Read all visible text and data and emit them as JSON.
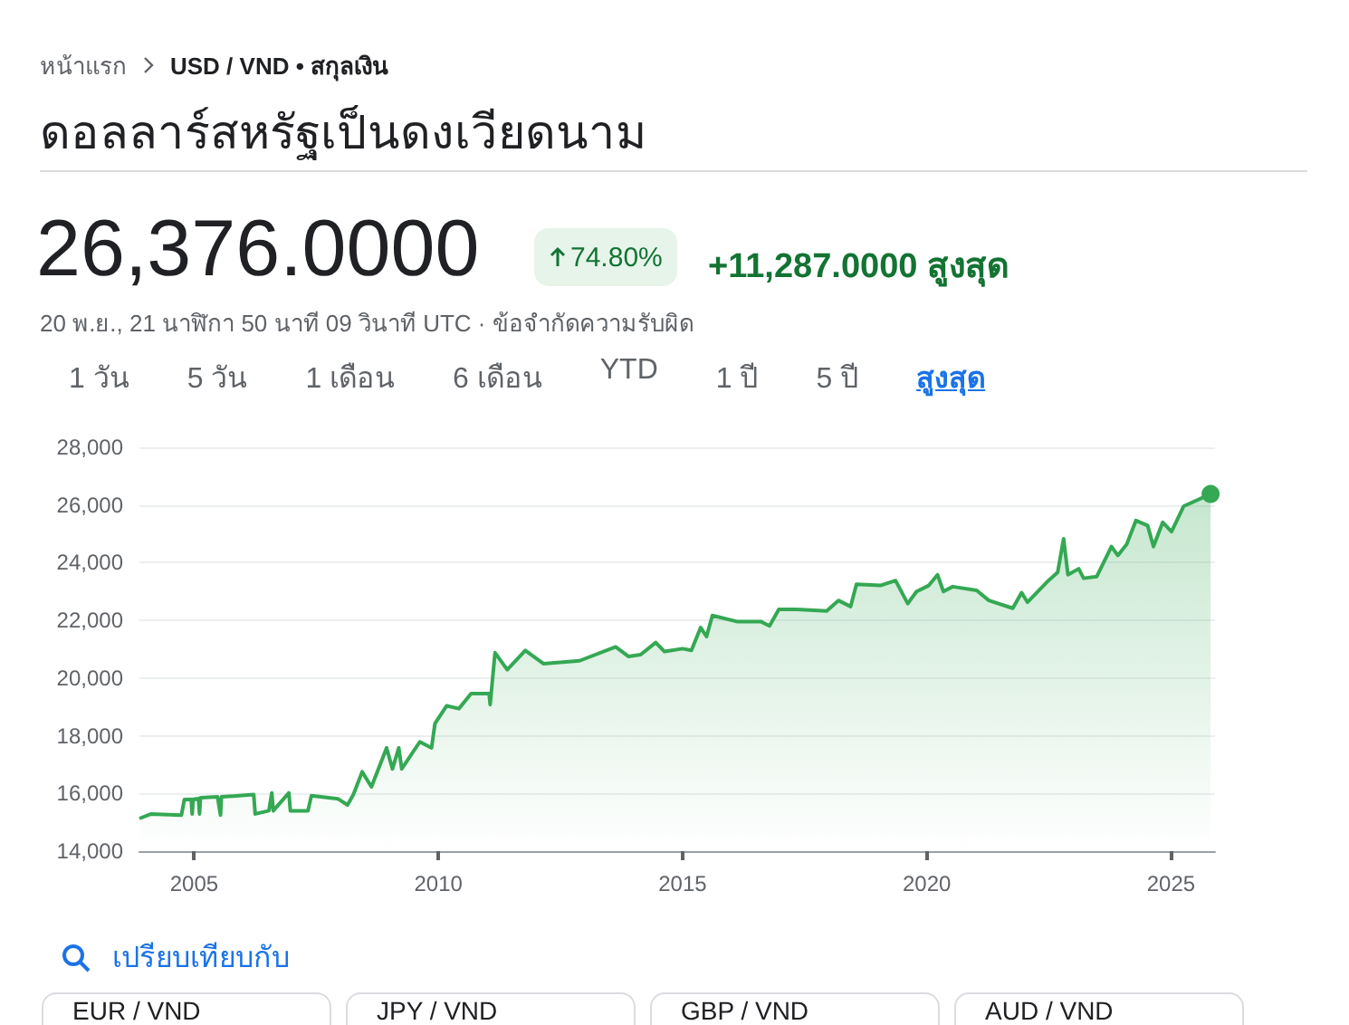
{
  "chart_data": {
    "type": "area",
    "title": "ดอลลาร์สหรัฐเป็นดงเวียดนาม",
    "subtitle": "USD / VND • สกุลเงิน",
    "annotations": [
      "หน้าแรก",
      "26,376.0000",
      "74.80%",
      "+11,287.0000 สูงสุด",
      "20 พ.ย., 21 นาฬิกา 50 นาที 09 วินาที UTC · ข้อจำกัดความรับผิด",
      "1 วัน",
      "5 วัน",
      "1 เดือน",
      "6 เดือน",
      "YTD",
      "1 ปี",
      "5 ปี",
      "สูงสุด",
      "เปรียบเทียบกับ",
      "EUR / VND",
      "JPY / VND",
      "GBP / VND",
      "AUD / VND"
    ],
    "x": [
      2003.88,
      2004.12,
      2004.74,
      2004.8,
      2004.94,
      2004.96,
      2004.98,
      2005.09,
      2005.11,
      2005.13,
      2005.48,
      2005.54,
      2005.56,
      2006.22,
      2006.25,
      2006.53,
      2006.59,
      2006.62,
      2006.94,
      2006.97,
      2007.33,
      2007.4,
      2007.95,
      2008.14,
      2008.26,
      2008.44,
      2008.63,
      2008.94,
      2009.06,
      2009.19,
      2009.25,
      2009.62,
      2009.86,
      2009.93,
      2010.17,
      2010.42,
      2010.67,
      2011.04,
      2011.06,
      2011.16,
      2011.41,
      2011.78,
      2012.15,
      2012.89,
      2013.63,
      2013.89,
      2014.14,
      2014.45,
      2014.63,
      2015.0,
      2015.18,
      2015.37,
      2015.49,
      2015.61,
      2016.11,
      2016.6,
      2016.78,
      2016.97,
      2017.33,
      2017.95,
      2018.19,
      2018.44,
      2018.56,
      2019.05,
      2019.36,
      2019.61,
      2019.79,
      2020.04,
      2020.22,
      2020.34,
      2020.53,
      2021.02,
      2021.27,
      2021.76,
      2021.94,
      2022.06,
      2022.49,
      2022.68,
      2022.8,
      2022.89,
      2023.11,
      2023.21,
      2023.48,
      2023.78,
      2023.91,
      2024.09,
      2024.28,
      2024.52,
      2024.64,
      2024.83,
      2025.01,
      2025.26,
      2025.81
    ],
    "series": [
      {
        "color": "#34a853",
        "values": [
          15130,
          15290,
          15250,
          15790,
          15800,
          15290,
          15800,
          15820,
          15290,
          15850,
          15880,
          15250,
          15880,
          15960,
          15290,
          15400,
          16020,
          15400,
          16020,
          15400,
          15400,
          15920,
          15810,
          15600,
          15960,
          16750,
          16230,
          17580,
          16850,
          17580,
          16850,
          17790,
          17580,
          18420,
          19040,
          18940,
          19460,
          19460,
          19080,
          20880,
          20290,
          20960,
          20500,
          20600,
          21080,
          20750,
          20810,
          21230,
          20920,
          21020,
          20960,
          21750,
          21440,
          22170,
          21960,
          21960,
          21810,
          22380,
          22380,
          22330,
          22690,
          22480,
          23250,
          23210,
          23380,
          22580,
          23000,
          23210,
          23580,
          23000,
          23170,
          23040,
          22690,
          22420,
          22960,
          22630,
          23380,
          23670,
          24830,
          23580,
          23790,
          23460,
          23520,
          24560,
          24250,
          24630,
          25460,
          25290,
          24560,
          25400,
          25080,
          25960,
          26380
        ]
      }
    ],
    "xlim": [
      2003.88,
      2025.9
    ],
    "xticks": [
      2005,
      2010,
      2015,
      2020,
      2025
    ],
    "ylim": [
      14000,
      28000
    ],
    "yticks": [
      {
        "value": 14000,
        "label": "14,000"
      },
      {
        "value": 16000,
        "label": "16,000"
      },
      {
        "value": 18000,
        "label": "18,000"
      },
      {
        "value": 20000,
        "label": "20,000"
      },
      {
        "value": 22000,
        "label": "22,000"
      },
      {
        "value": 24000,
        "label": "24,000"
      },
      {
        "value": 26000,
        "label": "26,000"
      },
      {
        "value": 28000,
        "label": "28,000"
      }
    ],
    "grid": "y"
  }
}
